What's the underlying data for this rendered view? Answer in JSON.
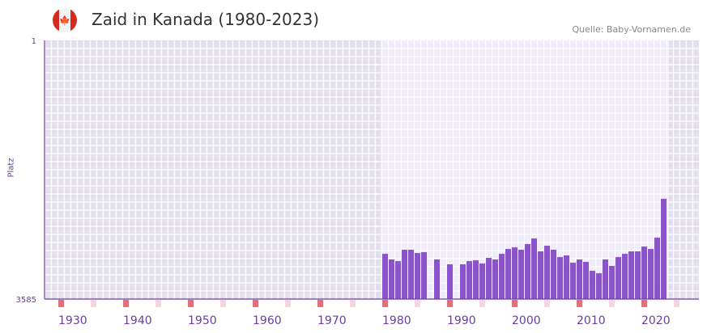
{
  "header": {
    "title": "Zaid in Kanada (1980-2023)",
    "source": "Quelle: Baby-Vornamen.de",
    "flag_icon": "canada-flag-icon"
  },
  "chart_data": {
    "type": "bar",
    "title": "Zaid in Kanada (1980-2023)",
    "ylabel": "Platz",
    "ylim": [
      3585,
      1
    ],
    "y_ticks": [
      "1",
      "3585"
    ],
    "x_range": [
      1928,
      2028
    ],
    "x_ticks": [
      "1930",
      "1940",
      "1950",
      "1960",
      "1970",
      "1980",
      "1990",
      "2000",
      "2010",
      "2020"
    ],
    "active_range": [
      1980,
      2023
    ],
    "colors": {
      "bar": "#8a55c8",
      "axis": "#6a3ea1",
      "decade_marker": "#e5707a",
      "half_marker": "#f3d6de"
    },
    "x": [
      1980,
      1981,
      1982,
      1983,
      1984,
      1985,
      1986,
      1988,
      1990,
      1992,
      1993,
      1994,
      1995,
      1996,
      1997,
      1998,
      1999,
      2000,
      2001,
      2002,
      2003,
      2004,
      2005,
      2006,
      2007,
      2008,
      2009,
      2010,
      2011,
      2012,
      2013,
      2014,
      2015,
      2016,
      2017,
      2018,
      2019,
      2020,
      2021,
      2022,
      2023
    ],
    "values": [
      2958,
      3036,
      3059,
      2902,
      2902,
      2947,
      2935,
      3036,
      3103,
      3103,
      3059,
      3048,
      3092,
      3014,
      3036,
      2958,
      2891,
      2868,
      2902,
      2823,
      2745,
      2924,
      2846,
      2902,
      3003,
      2980,
      3081,
      3036,
      3070,
      3193,
      3227,
      3036,
      3126,
      3003,
      2958,
      2924,
      2924,
      2857,
      2891,
      2734,
      2196
    ]
  }
}
